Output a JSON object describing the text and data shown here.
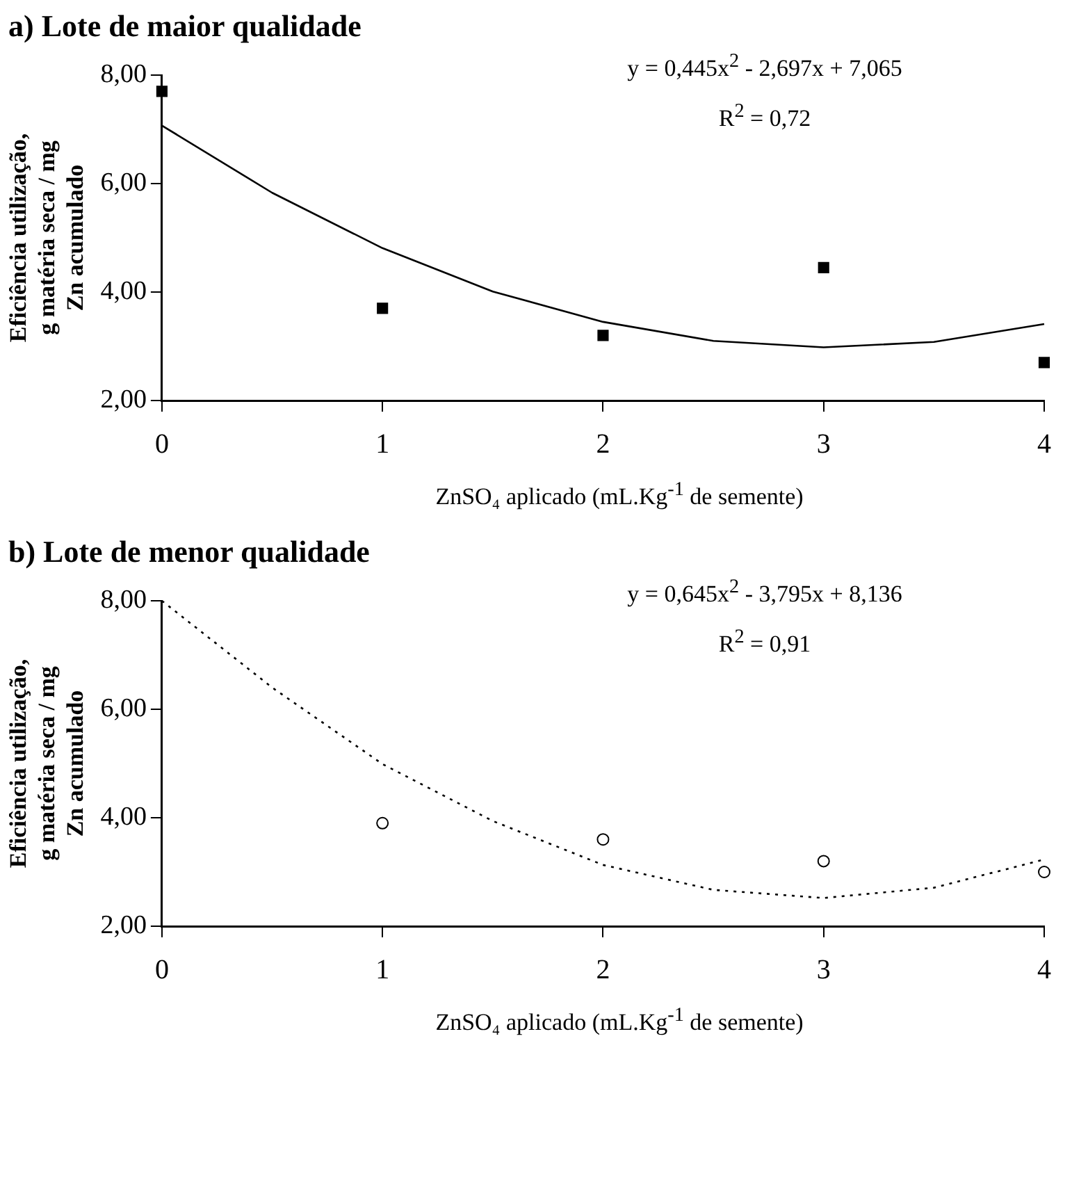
{
  "chart_data": [
    {
      "type": "scatter",
      "title": "a) Lote de maior qualidade",
      "xlabel": "ZnSO₄ aplicado (mL.Kg$^{-1}$ de semente)",
      "ylabel": "Eficiência utilização,\ng matéria seca / mg\nZn acumulado",
      "xlim": [
        0,
        4
      ],
      "xticks": [
        0,
        1,
        2,
        3,
        4
      ],
      "ylim": [
        2,
        8
      ],
      "yticks": [
        {
          "value": 2,
          "label": "2,00"
        },
        {
          "value": 4,
          "label": "4,00"
        },
        {
          "value": 6,
          "label": "6,00"
        },
        {
          "value": 8,
          "label": "8,00"
        }
      ],
      "grid": false,
      "legend": false,
      "annotations": [
        "y = 0,445x$^{2}$ - 2,697x + 7,065",
        "R$^{2}$ = 0,72"
      ],
      "series": [
        {
          "type": "scatter",
          "x": [
            0,
            1,
            2,
            3,
            4
          ],
          "values": [
            7.7,
            3.7,
            3.2,
            4.45,
            2.7
          ],
          "color": "#000000",
          "marker": "square"
        },
        {
          "type": "line",
          "x": [
            0,
            0.5,
            1,
            1.5,
            2,
            2.5,
            3,
            3.5,
            4
          ],
          "values": [
            7.07,
            5.83,
            4.81,
            4.01,
            3.45,
            3.1,
            2.98,
            3.08,
            3.41
          ],
          "color": "#000000",
          "marker": "none",
          "line_style": "solid"
        }
      ]
    },
    {
      "type": "scatter",
      "title": "b) Lote de menor qualidade",
      "xlabel": "ZnSO₄ aplicado (mL.Kg$^{-1}$ de semente)",
      "ylabel": "Eficiência utilização,\ng matéria seca / mg\nZn acumulado",
      "xlim": [
        0,
        4
      ],
      "xticks": [
        0,
        1,
        2,
        3,
        4
      ],
      "ylim": [
        2,
        8
      ],
      "yticks": [
        {
          "value": 2,
          "label": "2,00"
        },
        {
          "value": 4,
          "label": "4,00"
        },
        {
          "value": 6,
          "label": "6,00"
        },
        {
          "value": 8,
          "label": "8,00"
        }
      ],
      "grid": false,
      "legend": false,
      "annotations": [
        "y = 0,645x$^{2}$ - 3,795x + 8,136",
        "R$^{2}$ = 0,91"
      ],
      "series": [
        {
          "type": "scatter",
          "x": [
            1,
            2,
            3,
            4
          ],
          "values": [
            3.9,
            3.6,
            3.2,
            3.0
          ],
          "color": "#000000",
          "marker": "circle"
        },
        {
          "type": "line",
          "x": [
            0,
            0.5,
            1,
            1.5,
            2,
            2.5,
            3,
            3.5,
            4
          ],
          "values": [
            8.0,
            6.4,
            4.99,
            3.94,
            3.13,
            2.67,
            2.52,
            2.71,
            3.23
          ],
          "color": "#000000",
          "marker": "none",
          "line_style": "dotted"
        }
      ]
    }
  ]
}
